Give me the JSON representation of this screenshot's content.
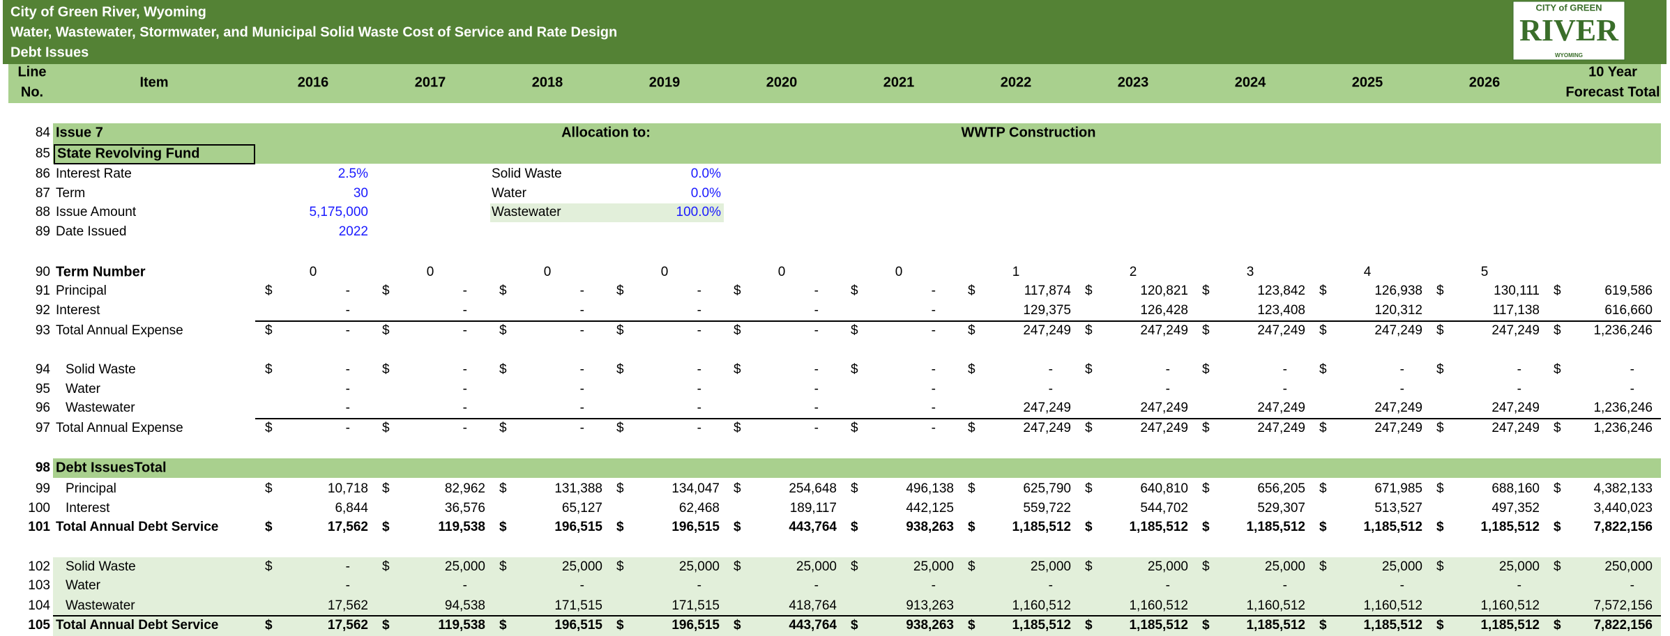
{
  "header": {
    "lines": [
      "City of Green River, Wyoming",
      "Water, Wastewater, Stormwater, and Municipal Solid Waste Cost of Service and Rate Design",
      "Debt Issues"
    ]
  },
  "logo": {
    "top": "CITY of GREEN",
    "main": "RIVER",
    "bottom": "WYOMING"
  },
  "columns": {
    "line_no": [
      "Line",
      "No."
    ],
    "item": "Item",
    "years": [
      "2016",
      "2017",
      "2018",
      "2019",
      "2020",
      "2021",
      "2022",
      "2023",
      "2024",
      "2025",
      "2026"
    ],
    "total": [
      "10 Year",
      "Forecast Total"
    ]
  },
  "issue": {
    "line": "84",
    "label": "Issue 7",
    "allocation_label": "Allocation to:",
    "allocation_value": "WWTP Construction",
    "fund": {
      "line": "85",
      "label": "State Revolving Fund"
    },
    "params": [
      {
        "line": "86",
        "label": "Interest Rate",
        "value": "2.5%",
        "alloc_label": "Solid Waste",
        "alloc_value": "0.0%"
      },
      {
        "line": "87",
        "label": "Term",
        "value": "30",
        "alloc_label": "Water",
        "alloc_value": "0.0%"
      },
      {
        "line": "88",
        "label": "Issue Amount",
        "value": "5,175,000",
        "alloc_label": "Wastewater",
        "alloc_value": "100.0%"
      },
      {
        "line": "89",
        "label": "Date Issued",
        "value": "2022"
      }
    ]
  },
  "table": {
    "currency": "$",
    "rows": [
      {
        "line": "90",
        "label": "Term Number",
        "terms": [
          "0",
          "0",
          "0",
          "0",
          "0",
          "0",
          "1",
          "2",
          "3",
          "4",
          "5"
        ]
      },
      {
        "line": "91",
        "label": "Principal",
        "dollar": true,
        "cells": [
          "-",
          "-",
          "-",
          "-",
          "-",
          "-",
          "117,874",
          "120,821",
          "123,842",
          "126,938",
          "130,111",
          "619,586"
        ]
      },
      {
        "line": "92",
        "label": "Interest",
        "cells": [
          "-",
          "-",
          "-",
          "-",
          "-",
          "-",
          "129,375",
          "126,428",
          "123,408",
          "120,312",
          "117,138",
          "616,660"
        ]
      },
      {
        "line": "93",
        "label": "Total Annual Expense",
        "dollar": true,
        "cells": [
          "-",
          "-",
          "-",
          "-",
          "-",
          "-",
          "247,249",
          "247,249",
          "247,249",
          "247,249",
          "247,249",
          "1,236,246"
        ]
      },
      {
        "line": "94",
        "label": "Solid Waste",
        "indent": true,
        "dollar": true,
        "cells": [
          "-",
          "-",
          "-",
          "-",
          "-",
          "-",
          "-",
          "-",
          "-",
          "-",
          "-",
          "-"
        ]
      },
      {
        "line": "95",
        "label": "Water",
        "indent": true,
        "cells": [
          "-",
          "-",
          "-",
          "-",
          "-",
          "-",
          "-",
          "-",
          "-",
          "-",
          "-",
          "-"
        ]
      },
      {
        "line": "96",
        "label": "Wastewater",
        "indent": true,
        "cells": [
          "-",
          "-",
          "-",
          "-",
          "-",
          "-",
          "247,249",
          "247,249",
          "247,249",
          "247,249",
          "247,249",
          "1,236,246"
        ]
      },
      {
        "line": "97",
        "label": "Total Annual Expense",
        "dollar": true,
        "cells": [
          "-",
          "-",
          "-",
          "-",
          "-",
          "-",
          "247,249",
          "247,249",
          "247,249",
          "247,249",
          "247,249",
          "1,236,246"
        ]
      },
      {
        "line": "98",
        "label": "Debt IssuesTotal",
        "bold": true
      },
      {
        "line": "99",
        "label": "Principal",
        "indent": true,
        "dollar": true,
        "cells": [
          "10,718",
          "82,962",
          "131,388",
          "134,047",
          "254,648",
          "496,138",
          "625,790",
          "640,810",
          "656,205",
          "671,985",
          "688,160",
          "4,382,133"
        ]
      },
      {
        "line": "100",
        "label": "Interest",
        "indent": true,
        "cells": [
          "6,844",
          "36,576",
          "65,127",
          "62,468",
          "189,117",
          "442,125",
          "559,722",
          "544,702",
          "529,307",
          "513,527",
          "497,352",
          "3,440,023"
        ]
      },
      {
        "line": "101",
        "label": "Total Annual Debt Service",
        "bold": true,
        "dollar": true,
        "cells": [
          "17,562",
          "119,538",
          "196,515",
          "196,515",
          "443,764",
          "938,263",
          "1,185,512",
          "1,185,512",
          "1,185,512",
          "1,185,512",
          "1,185,512",
          "7,822,156"
        ]
      },
      {
        "line": "102",
        "label": "Solid Waste",
        "indent": true,
        "dollar": true,
        "cells": [
          "-",
          "25,000",
          "25,000",
          "25,000",
          "25,000",
          "25,000",
          "25,000",
          "25,000",
          "25,000",
          "25,000",
          "25,000",
          "250,000"
        ]
      },
      {
        "line": "103",
        "label": "Water",
        "indent": true,
        "cells": [
          "-",
          "-",
          "-",
          "-",
          "-",
          "-",
          "-",
          "-",
          "-",
          "-",
          "-",
          "-"
        ]
      },
      {
        "line": "104",
        "label": "Wastewater",
        "indent": true,
        "cells": [
          "17,562",
          "94,538",
          "171,515",
          "171,515",
          "418,764",
          "913,263",
          "1,160,512",
          "1,160,512",
          "1,160,512",
          "1,160,512",
          "1,160,512",
          "7,572,156"
        ]
      },
      {
        "line": "105",
        "label": "Total Annual Debt Service",
        "bold": true,
        "dollar": true,
        "cells": [
          "17,562",
          "119,538",
          "196,515",
          "196,515",
          "443,764",
          "938,263",
          "1,185,512",
          "1,185,512",
          "1,185,512",
          "1,185,512",
          "1,185,512",
          "7,822,156"
        ]
      }
    ]
  }
}
